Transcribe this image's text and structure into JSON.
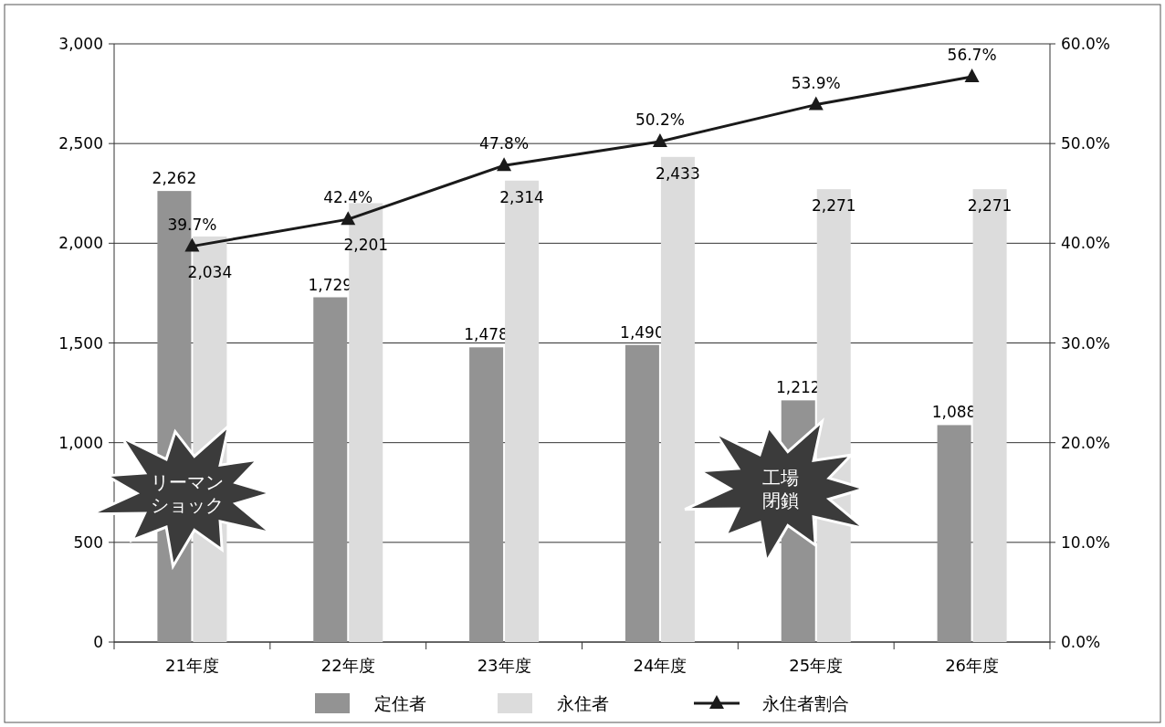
{
  "chart_data": {
    "type": "bar",
    "categories": [
      "21年度",
      "22年度",
      "23年度",
      "24年度",
      "25年度",
      "26年度"
    ],
    "series": [
      {
        "name": "定住者",
        "color": "#939393",
        "values": [
          2262,
          1729,
          1478,
          1490,
          1212,
          1088
        ],
        "value_labels": [
          "2,262",
          "1,729",
          "1,478",
          "1,490",
          "1,212",
          "1,088"
        ]
      },
      {
        "name": "永住者",
        "color": "#dcdcdc",
        "values": [
          2034,
          2201,
          2314,
          2433,
          2271,
          2271
        ],
        "value_labels": [
          "2,034",
          "2,201",
          "2,314",
          "2,433",
          "2,271",
          "2,271"
        ]
      },
      {
        "name": "永住者割合",
        "type": "line",
        "axis": "y2",
        "color": "#1a1a1a",
        "marker": "triangle",
        "values": [
          39.7,
          42.4,
          47.8,
          50.2,
          53.9,
          56.7
        ],
        "value_labels": [
          "39.7%",
          "42.4%",
          "47.8%",
          "50.2%",
          "53.9%",
          "56.7%"
        ]
      }
    ],
    "ylim": [
      0,
      3000
    ],
    "yticks": [
      {
        "value": 0,
        "label": "0"
      },
      {
        "value": 500,
        "label": "500"
      },
      {
        "value": 1000,
        "label": "1,000"
      },
      {
        "value": 1500,
        "label": "1,500"
      },
      {
        "value": 2000,
        "label": "2,000"
      },
      {
        "value": 2500,
        "label": "2,500"
      },
      {
        "value": 3000,
        "label": "3,000"
      }
    ],
    "y2lim": [
      0,
      60
    ],
    "y2ticks": [
      {
        "value": 0,
        "label": "0.0%"
      },
      {
        "value": 10,
        "label": "10.0%"
      },
      {
        "value": 20,
        "label": "20.0%"
      },
      {
        "value": 30,
        "label": "30.0%"
      },
      {
        "value": 40,
        "label": "40.0%"
      },
      {
        "value": 50,
        "label": "50.0%"
      },
      {
        "value": 60,
        "label": "60.0%"
      }
    ],
    "grid": "y",
    "legend": "bottom",
    "annotations": [
      "リーマンショック",
      "工場閉鎖"
    ]
  }
}
